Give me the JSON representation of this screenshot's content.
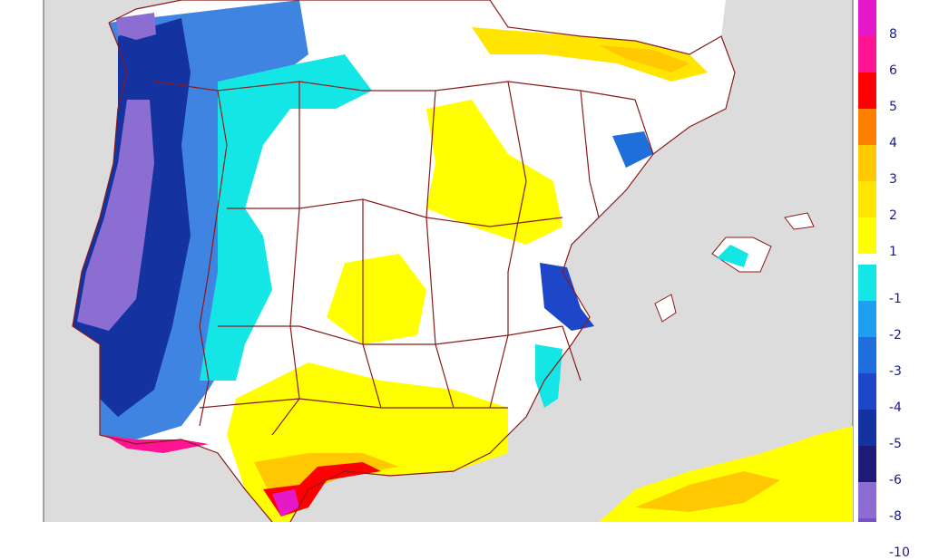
{
  "map": {
    "legend": {
      "positive": [
        {
          "label": "8",
          "color": "#e619c8"
        },
        {
          "label": "6",
          "color": "#ff1493"
        },
        {
          "label": "5",
          "color": "#ff0000"
        },
        {
          "label": "4",
          "color": "#ff8000"
        },
        {
          "label": "3",
          "color": "#ffc800"
        },
        {
          "label": "2",
          "color": "#ffe500"
        },
        {
          "label": "1",
          "color": "#ffff00"
        }
      ],
      "negative": [
        {
          "label": "-1",
          "color": "#14e6e6"
        },
        {
          "label": "-2",
          "color": "#1ea0f0"
        },
        {
          "label": "-3",
          "color": "#1e6edc"
        },
        {
          "label": "-4",
          "color": "#1e46c8"
        },
        {
          "label": "-5",
          "color": "#1432a0"
        },
        {
          "label": "-6",
          "color": "#1e1a78"
        },
        {
          "label": "-8",
          "color": "#8c6ed2"
        },
        {
          "label": "-10",
          "color": "#7850c8"
        }
      ]
    },
    "colors": {
      "sea": "#dcdcdc",
      "land": "#ffffff",
      "border": "#8b1a1a"
    }
  }
}
